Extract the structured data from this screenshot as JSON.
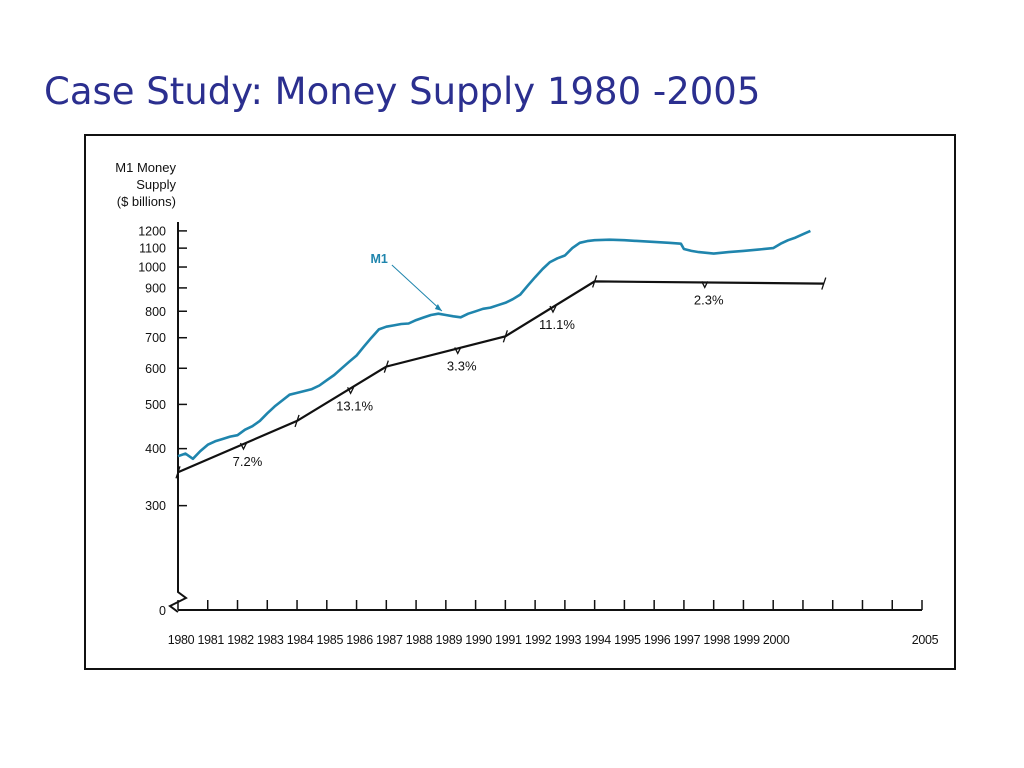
{
  "slide": {
    "title": "Case Study: Money Supply 1980 -2005"
  },
  "colors": {
    "title": "#2b2f8f",
    "series": "#1f85ad",
    "axis": "#111111",
    "frame": "#111111"
  },
  "chart_data": {
    "type": "line",
    "title": "",
    "ylabel_lines": [
      "M1 Money",
      "Supply",
      "($ billions)"
    ],
    "xlabel": "",
    "y_scale": "log",
    "ylim": [
      260,
      1230
    ],
    "xlim": [
      1980,
      2005
    ],
    "axis_break": true,
    "y_break_label": "0",
    "y_ticks": [
      300,
      400,
      500,
      600,
      700,
      800,
      900,
      1000,
      1100,
      1200
    ],
    "x_ticks": [
      1980,
      1981,
      1982,
      1983,
      1984,
      1985,
      1986,
      1987,
      1988,
      1989,
      1990,
      1991,
      1992,
      1993,
      1994,
      1995,
      1996,
      1997,
      1998,
      1999,
      2000,
      2005
    ],
    "grid": false,
    "series": [
      {
        "name": "M1",
        "x": [
          1980,
          1980.25,
          1980.5,
          1980.75,
          1981,
          1981.25,
          1981.5,
          1981.75,
          1982,
          1982.25,
          1982.5,
          1982.75,
          1983,
          1983.25,
          1983.5,
          1983.75,
          1984,
          1984.25,
          1984.5,
          1984.75,
          1985,
          1985.25,
          1985.5,
          1985.75,
          1986,
          1986.25,
          1986.5,
          1986.75,
          1987,
          1987.25,
          1987.5,
          1987.75,
          1988,
          1988.25,
          1988.5,
          1988.75,
          1989,
          1989.25,
          1989.5,
          1989.75,
          1990,
          1990.25,
          1990.5,
          1990.75,
          1991,
          1991.25,
          1991.5,
          1991.75,
          1992,
          1992.25,
          1992.5,
          1992.75,
          1993,
          1993.25,
          1993.5,
          1993.75,
          1994,
          1994.5,
          1995,
          1995.5,
          1996,
          1996.5,
          1996.9,
          1997,
          1997.25,
          1997.5,
          1998,
          1998.5,
          1999,
          1999.5,
          2000,
          2000.25,
          2000.5,
          2000.75,
          2001,
          2001.25
        ],
        "values": [
          385,
          390,
          380,
          395,
          408,
          415,
          420,
          425,
          428,
          440,
          448,
          460,
          478,
          495,
          510,
          525,
          530,
          535,
          540,
          550,
          565,
          580,
          600,
          620,
          640,
          670,
          700,
          730,
          740,
          745,
          750,
          752,
          765,
          775,
          785,
          790,
          785,
          780,
          776,
          790,
          800,
          810,
          815,
          825,
          835,
          850,
          870,
          910,
          950,
          990,
          1025,
          1045,
          1060,
          1100,
          1130,
          1140,
          1145,
          1148,
          1145,
          1140,
          1135,
          1130,
          1125,
          1095,
          1085,
          1078,
          1070,
          1078,
          1085,
          1092,
          1100,
          1125,
          1145,
          1160,
          1180,
          1200
        ]
      }
    ],
    "trend_segments": [
      {
        "x": [
          1980,
          1984
        ],
        "label": "7.2%",
        "label_x": 1982.2
      },
      {
        "x": [
          1984,
          1987
        ],
        "label": "13.1%",
        "label_x": 1985.8
      },
      {
        "x": [
          1987,
          1991
        ],
        "label": "3.3%",
        "label_x": 1989.4
      },
      {
        "x": [
          1991,
          1994
        ],
        "label": "11.1%",
        "label_x": 1992.6
      },
      {
        "x": [
          1994,
          2001.7
        ],
        "label": "2.3%",
        "label_x": 1997.7
      }
    ],
    "trend_values": {
      "x": [
        1980,
        1984,
        1987,
        1991,
        1994,
        2001.7
      ],
      "y": [
        355,
        460,
        605,
        705,
        930,
        920
      ]
    },
    "annotations": [
      {
        "text": "M1",
        "series": "M1",
        "target_x": 1988.8
      }
    ]
  }
}
